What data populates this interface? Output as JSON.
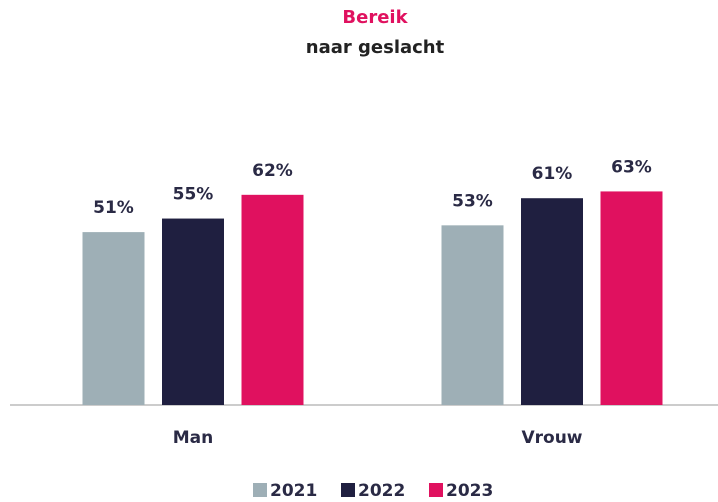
{
  "chart_data": {
    "type": "bar",
    "title": "Bereik",
    "subtitle": "naar geslacht",
    "categories": [
      "Man",
      "Vrouw"
    ],
    "series": [
      {
        "name": "2021",
        "color": "#9eafb6",
        "values": [
          51,
          53
        ],
        "value_labels": [
          "51%",
          "53%"
        ]
      },
      {
        "name": "2022",
        "color": "#1f1f40",
        "values": [
          55,
          61
        ],
        "value_labels": [
          "55%",
          "61%"
        ]
      },
      {
        "name": "2023",
        "color": "#e0115f",
        "values": [
          62,
          63
        ],
        "value_labels": [
          "62%",
          "63%"
        ]
      }
    ],
    "ylim": [
      0,
      100
    ]
  }
}
